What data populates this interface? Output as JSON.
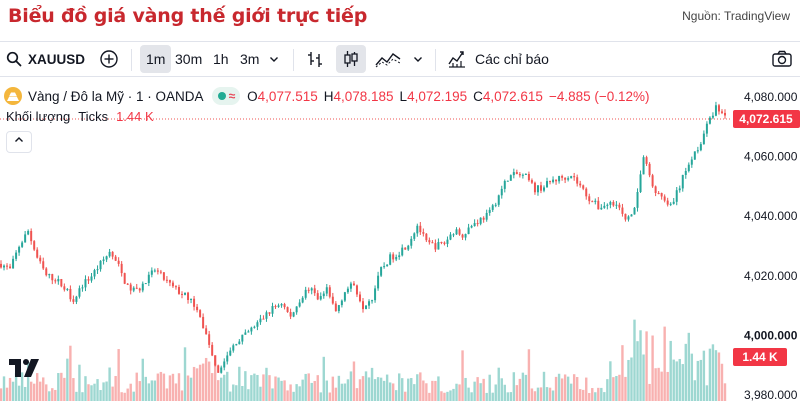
{
  "page_title": "Biểu đồ giá vàng thế giới trực tiếp",
  "source_credit": "Nguồn: TradingView",
  "toolbar": {
    "symbol": "XAUUSD",
    "timeframes": [
      {
        "label": "1m",
        "active": true
      },
      {
        "label": "30m",
        "active": false
      },
      {
        "label": "1h",
        "active": false
      },
      {
        "label": "3m",
        "active": false
      }
    ],
    "indicators_label": "Các chỉ báo"
  },
  "legend": {
    "instrument": "Vàng / Đô la Mỹ · 1 · OANDA",
    "open_key": "O",
    "open": "4,077.515",
    "high_key": "H",
    "high": "4,078.185",
    "low_key": "L",
    "low": "4,072.195",
    "close_key": "C",
    "close": "4,072.615",
    "change": "−4.885 (−0.12%)"
  },
  "volume": {
    "label": "Khối lượng",
    "type": "Ticks",
    "value": "1.44 K"
  },
  "price_axis": {
    "ticks": [
      "4,080.000",
      "4,060.000",
      "4,040.000",
      "4,020.000",
      "4,000.000",
      "3,980.000"
    ],
    "current_price": "4,072.615",
    "volume_badge": "1.44 K"
  },
  "colors": {
    "up": "#26a69a",
    "down": "#ef5350",
    "title": "#c8282e"
  },
  "chart_data": {
    "type": "candlestick",
    "instrument": "Vàng / Đô la Mỹ · 1 · OANDA",
    "ylim": [
      3978,
      4084
    ],
    "close_path": [
      [
        0,
        4024
      ],
      [
        3,
        4022
      ],
      [
        6,
        4030
      ],
      [
        9,
        4035
      ],
      [
        12,
        4026
      ],
      [
        15,
        4020
      ],
      [
        18,
        4019
      ],
      [
        21,
        4016
      ],
      [
        24,
        4012
      ],
      [
        27,
        4017
      ],
      [
        30,
        4020
      ],
      [
        33,
        4024
      ],
      [
        36,
        4028
      ],
      [
        39,
        4023
      ],
      [
        42,
        4016
      ],
      [
        45,
        4015
      ],
      [
        48,
        4018
      ],
      [
        51,
        4022
      ],
      [
        54,
        4019
      ],
      [
        57,
        4016
      ],
      [
        60,
        4014
      ],
      [
        63,
        4012
      ],
      [
        66,
        4006
      ],
      [
        69,
        3997
      ],
      [
        72,
        3988
      ],
      [
        75,
        3993
      ],
      [
        78,
        3998
      ],
      [
        81,
        4000
      ],
      [
        84,
        4003
      ],
      [
        87,
        4006
      ],
      [
        90,
        4009
      ],
      [
        93,
        4011
      ],
      [
        96,
        4006
      ],
      [
        99,
        4012
      ],
      [
        102,
        4016
      ],
      [
        105,
        4012
      ],
      [
        108,
        4015
      ],
      [
        111,
        4008
      ],
      [
        114,
        4015
      ],
      [
        117,
        4017
      ],
      [
        120,
        4010
      ],
      [
        123,
        4013
      ],
      [
        126,
        4022
      ],
      [
        129,
        4026
      ],
      [
        132,
        4028
      ],
      [
        135,
        4031
      ],
      [
        138,
        4037
      ],
      [
        141,
        4031
      ],
      [
        144,
        4030
      ],
      [
        147,
        4031
      ],
      [
        150,
        4035
      ],
      [
        153,
        4034
      ],
      [
        156,
        4037
      ],
      [
        159,
        4039
      ],
      [
        162,
        4041
      ],
      [
        165,
        4047
      ],
      [
        168,
        4053
      ],
      [
        171,
        4054
      ],
      [
        174,
        4053
      ],
      [
        177,
        4049
      ],
      [
        180,
        4050
      ],
      [
        183,
        4052
      ],
      [
        186,
        4053
      ],
      [
        189,
        4054
      ],
      [
        192,
        4050
      ],
      [
        195,
        4046
      ],
      [
        198,
        4043
      ],
      [
        201,
        4044
      ],
      [
        204,
        4045
      ],
      [
        207,
        4038
      ],
      [
        210,
        4042
      ],
      [
        213,
        4060
      ],
      [
        216,
        4050
      ],
      [
        219,
        4046
      ],
      [
        222,
        4043
      ],
      [
        225,
        4050
      ],
      [
        228,
        4058
      ],
      [
        231,
        4063
      ],
      [
        234,
        4070
      ],
      [
        237,
        4077
      ],
      [
        240,
        4073
      ]
    ]
  }
}
